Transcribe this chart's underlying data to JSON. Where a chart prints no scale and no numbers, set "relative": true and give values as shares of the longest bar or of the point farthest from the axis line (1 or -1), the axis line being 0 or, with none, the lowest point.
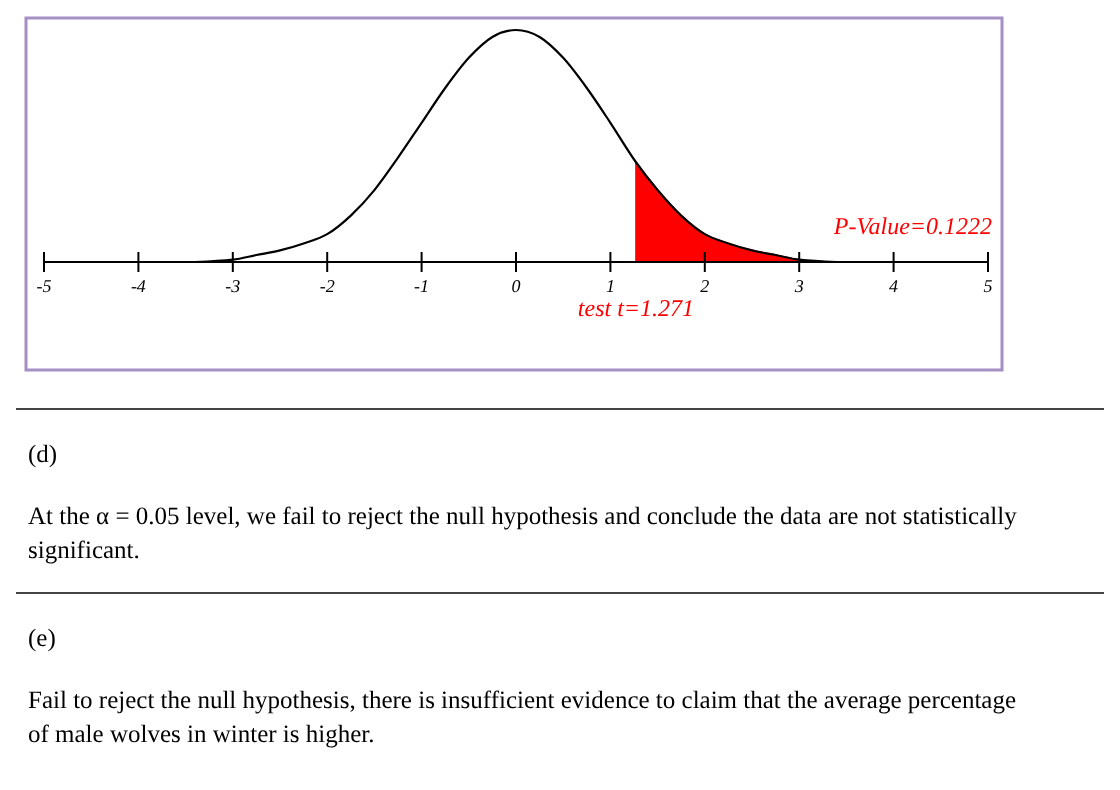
{
  "chart_data": {
    "type": "line",
    "relative": true,
    "xlim": [
      -5,
      5
    ],
    "xticks": [
      -5,
      -4,
      -3,
      -2,
      -1,
      0,
      1,
      2,
      3,
      4,
      5
    ],
    "series": [
      {
        "color": "#000000",
        "x": [
          -3.4,
          -3,
          -2.75,
          -2.5,
          -2.25,
          -2,
          -1.75,
          -1.5,
          -1.25,
          -1,
          -0.75,
          -0.5,
          -0.25,
          0,
          0.25,
          0.5,
          0.75,
          1,
          1.271,
          1.5,
          1.75,
          2,
          2.25,
          2.5,
          2.75,
          3,
          3.4
        ],
        "values": [
          0,
          0.01,
          0.03,
          0.05,
          0.08,
          0.12,
          0.2,
          0.31,
          0.45,
          0.6,
          0.75,
          0.88,
          0.97,
          1,
          0.97,
          0.88,
          0.75,
          0.6,
          0.43,
          0.31,
          0.2,
          0.12,
          0.08,
          0.05,
          0.03,
          0.01,
          0
        ]
      },
      {
        "type": "area",
        "color": "#ff0000",
        "x": [
          1.271,
          1.5,
          1.75,
          2,
          2.25,
          2.5,
          2.75,
          3,
          3.4
        ],
        "values": [
          0.43,
          0.31,
          0.2,
          0.12,
          0.08,
          0.05,
          0.03,
          0.01,
          0
        ]
      }
    ],
    "annotations": [
      {
        "text": "test t=1.271",
        "x": 1.271,
        "y": 0
      },
      "P-Value=0.1222",
      "(d)",
      "At the α = 0.05 level, we fail to reject the null hypothesis and conclude the data are not statistically significant.",
      "(e)",
      "Fail to reject the null hypothesis, there is insufficient evidence to claim that the average percentage of male wolves in winter is higher."
    ]
  }
}
